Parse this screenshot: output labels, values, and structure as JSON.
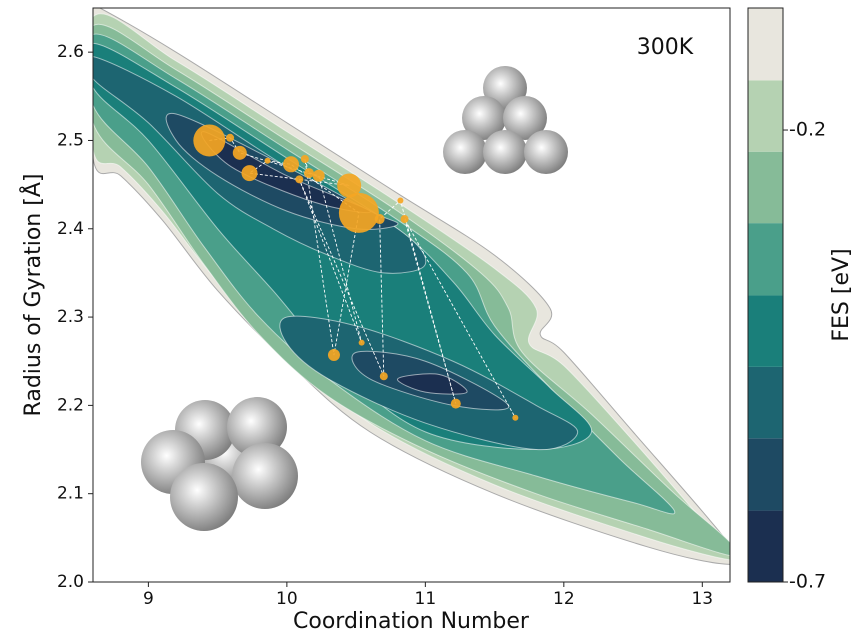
{
  "chart_data": {
    "type": "contour",
    "x_label": "Coordination Number",
    "y_label": "Radius of Gyration [Å]",
    "annotation": "300K",
    "xlim": [
      8.6,
      13.2
    ],
    "ylim": [
      2.0,
      2.65
    ],
    "xticks": [
      9,
      10,
      11,
      12,
      13
    ],
    "yticks": [
      {
        "value": 2.0,
        "label": "2.0"
      },
      2.1,
      2.2,
      2.3,
      2.4,
      2.5,
      2.6
    ],
    "colorbar": {
      "label": "FES [eV]",
      "levels": [
        -0.7,
        -0.621,
        -0.541,
        -0.462,
        -0.383,
        -0.303,
        -0.224,
        -0.145,
        -0.065
      ],
      "colors": [
        "#1b2f50",
        "#1e4a63",
        "#1d6571",
        "#1a7f7a",
        "#4a9f8a",
        "#86bb98",
        "#b5d2b2",
        "#e8e6de"
      ],
      "ticks": [
        -0.2,
        -0.7
      ]
    },
    "contours": [
      {
        "level": -0.065,
        "points": [
          [
            8.6,
            2.65
          ],
          [
            8.65,
            2.65
          ],
          [
            9.2,
            2.6
          ],
          [
            10.0,
            2.52
          ],
          [
            10.8,
            2.44
          ],
          [
            11.5,
            2.37
          ],
          [
            11.9,
            2.31
          ],
          [
            11.83,
            2.28
          ],
          [
            12.0,
            2.26
          ],
          [
            12.5,
            2.17
          ],
          [
            13.0,
            2.08
          ],
          [
            13.2,
            2.04
          ],
          [
            13.2,
            2.02
          ],
          [
            12.6,
            2.04
          ],
          [
            11.5,
            2.1
          ],
          [
            10.6,
            2.17
          ],
          [
            10.0,
            2.25
          ],
          [
            9.5,
            2.33
          ],
          [
            9.1,
            2.41
          ],
          [
            8.8,
            2.46
          ],
          [
            8.6,
            2.48
          ]
        ]
      },
      {
        "level": -0.145,
        "points": [
          [
            8.6,
            2.64
          ],
          [
            9.2,
            2.59
          ],
          [
            10.0,
            2.51
          ],
          [
            10.8,
            2.43
          ],
          [
            11.5,
            2.355
          ],
          [
            11.8,
            2.31
          ],
          [
            11.75,
            2.27
          ],
          [
            12.0,
            2.245
          ],
          [
            12.5,
            2.16
          ],
          [
            13.0,
            2.07
          ],
          [
            13.2,
            2.035
          ],
          [
            13.2,
            2.025
          ],
          [
            12.6,
            2.05
          ],
          [
            11.5,
            2.11
          ],
          [
            10.6,
            2.18
          ],
          [
            10.0,
            2.26
          ],
          [
            9.5,
            2.34
          ],
          [
            9.1,
            2.42
          ],
          [
            8.8,
            2.47
          ],
          [
            8.6,
            2.49
          ]
        ]
      },
      {
        "level": -0.224,
        "points": [
          [
            8.6,
            2.63
          ],
          [
            9.2,
            2.58
          ],
          [
            10.0,
            2.5
          ],
          [
            10.8,
            2.42
          ],
          [
            11.4,
            2.35
          ],
          [
            11.6,
            2.31
          ],
          [
            11.7,
            2.26
          ],
          [
            12.2,
            2.19
          ],
          [
            12.8,
            2.1
          ],
          [
            13.2,
            2.045
          ],
          [
            13.2,
            2.03
          ],
          [
            12.6,
            2.06
          ],
          [
            11.8,
            2.1
          ],
          [
            11.0,
            2.15
          ],
          [
            10.3,
            2.21
          ],
          [
            9.8,
            2.28
          ],
          [
            9.4,
            2.36
          ],
          [
            9.0,
            2.45
          ],
          [
            8.6,
            2.52
          ]
        ]
      },
      {
        "level": -0.303,
        "points": [
          [
            8.6,
            2.62
          ],
          [
            9.2,
            2.57
          ],
          [
            10.0,
            2.49
          ],
          [
            10.8,
            2.41
          ],
          [
            11.3,
            2.35
          ],
          [
            11.5,
            2.29
          ],
          [
            11.9,
            2.22
          ],
          [
            12.4,
            2.14
          ],
          [
            12.8,
            2.08
          ],
          [
            12.5,
            2.09
          ],
          [
            11.8,
            2.12
          ],
          [
            11.0,
            2.16
          ],
          [
            10.3,
            2.23
          ],
          [
            9.8,
            2.3
          ],
          [
            9.4,
            2.38
          ],
          [
            9.0,
            2.47
          ],
          [
            8.6,
            2.54
          ]
        ]
      },
      {
        "level": -0.383,
        "points": [
          [
            8.6,
            2.61
          ],
          [
            9.2,
            2.56
          ],
          [
            10.0,
            2.48
          ],
          [
            10.8,
            2.4
          ],
          [
            11.2,
            2.34
          ],
          [
            11.5,
            2.28
          ],
          [
            11.9,
            2.22
          ],
          [
            12.2,
            2.17
          ],
          [
            11.8,
            2.15
          ],
          [
            11.0,
            2.17
          ],
          [
            10.4,
            2.24
          ],
          [
            9.9,
            2.33
          ],
          [
            9.5,
            2.4
          ],
          [
            9.0,
            2.5
          ],
          [
            8.6,
            2.56
          ]
        ]
      },
      {
        "level": -0.462,
        "points": [
          [
            8.6,
            2.595
          ],
          [
            9.2,
            2.55
          ],
          [
            10.0,
            2.47
          ],
          [
            10.8,
            2.4
          ],
          [
            11.0,
            2.36
          ],
          [
            10.7,
            2.35
          ],
          [
            10.3,
            2.37
          ],
          [
            9.9,
            2.4
          ],
          [
            9.5,
            2.44
          ],
          [
            9.0,
            2.52
          ],
          [
            8.6,
            2.57
          ]
        ]
      },
      {
        "level": -0.462,
        "points": [
          [
            10.0,
            2.3
          ],
          [
            10.5,
            2.29
          ],
          [
            11.2,
            2.25
          ],
          [
            11.8,
            2.2
          ],
          [
            12.1,
            2.17
          ],
          [
            11.8,
            2.15
          ],
          [
            11.0,
            2.18
          ],
          [
            10.3,
            2.23
          ],
          [
            10.0,
            2.27
          ]
        ]
      },
      {
        "level": -0.541,
        "points": [
          [
            9.2,
            2.53
          ],
          [
            10.0,
            2.47
          ],
          [
            10.6,
            2.42
          ],
          [
            10.8,
            2.405
          ],
          [
            10.5,
            2.4
          ],
          [
            10.0,
            2.42
          ],
          [
            9.5,
            2.46
          ],
          [
            9.2,
            2.5
          ]
        ]
      },
      {
        "level": -0.541,
        "points": [
          [
            10.5,
            2.26
          ],
          [
            11.0,
            2.25
          ],
          [
            11.6,
            2.2
          ],
          [
            11.2,
            2.2
          ],
          [
            10.6,
            2.23
          ]
        ]
      },
      {
        "level": -0.621,
        "points": [
          [
            9.4,
            2.51
          ],
          [
            10.0,
            2.46
          ],
          [
            10.6,
            2.42
          ],
          [
            10.2,
            2.43
          ],
          [
            9.6,
            2.47
          ]
        ]
      },
      {
        "level": -0.621,
        "points": [
          [
            10.8,
            2.23
          ],
          [
            11.1,
            2.235
          ],
          [
            11.3,
            2.215
          ],
          [
            11.0,
            2.215
          ]
        ]
      }
    ],
    "scatter": {
      "color": "#f5a623",
      "x": [
        9.44,
        9.59,
        9.66,
        10.45,
        9.73,
        9.86,
        10.03,
        10.52,
        10.34,
        10.13,
        10.16,
        10.23,
        10.54,
        10.09,
        10.7,
        10.67,
        10.82,
        11.22,
        10.85,
        11.65
      ],
      "y": [
        2.5,
        2.503,
        2.486,
        2.449,
        2.463,
        2.477,
        2.473,
        2.418,
        2.257,
        2.479,
        2.463,
        2.46,
        2.271,
        2.456,
        2.233,
        2.411,
        2.432,
        2.202,
        2.411,
        2.186
      ],
      "sizes": [
        16,
        4,
        7,
        12,
        8,
        3,
        8,
        20,
        6,
        4,
        5,
        6,
        3,
        4,
        4,
        5,
        3,
        5,
        4,
        3
      ]
    }
  }
}
